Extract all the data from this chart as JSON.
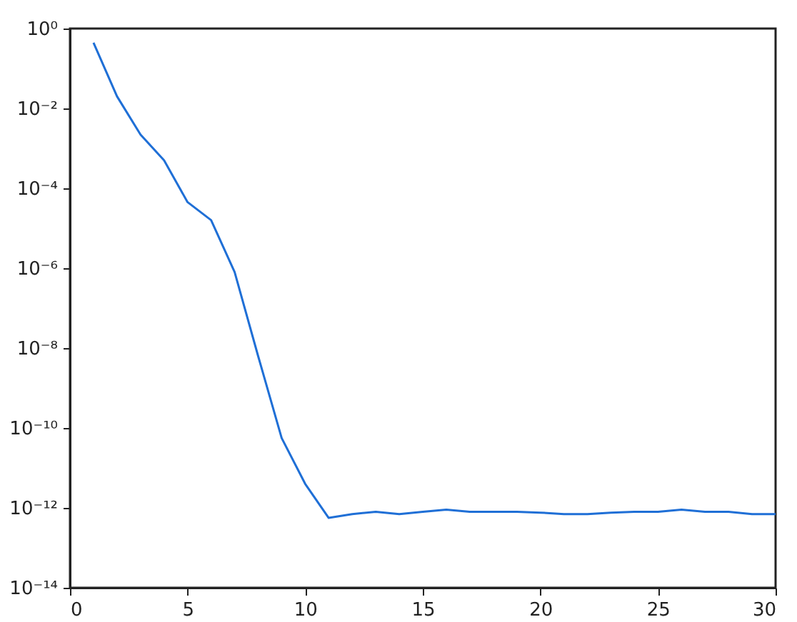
{
  "chart_data": {
    "type": "line",
    "log": "y",
    "grid": false,
    "marker": "none",
    "line_style": "solid",
    "x": [
      1,
      2,
      3,
      4,
      5,
      6,
      7,
      8,
      9,
      10,
      11,
      12,
      13,
      14,
      15,
      16,
      17,
      18,
      19,
      20,
      21,
      22,
      23,
      24,
      25,
      26,
      27,
      28,
      29,
      30
    ],
    "series": [
      {
        "color": "#1f6fd6",
        "values": [
          0.44,
          0.02,
          0.0022,
          0.0005,
          4.5e-05,
          1.6e-05,
          8e-07,
          6.3e-09,
          5.6e-11,
          4e-12,
          5.6e-13,
          7e-13,
          8e-13,
          7e-13,
          8e-13,
          9e-13,
          8e-13,
          8e-13,
          8e-13,
          7.6e-13,
          7e-13,
          7e-13,
          7.6e-13,
          8e-13,
          8e-13,
          9e-13,
          8e-13,
          8e-13,
          7e-13,
          7e-13
        ]
      }
    ],
    "xlim": [
      0,
      30
    ],
    "xticks": [
      0,
      5,
      10,
      15,
      20,
      25,
      30
    ],
    "ylim": [
      1e-14,
      1
    ],
    "yticks": [
      {
        "value": 1e-14,
        "label": "10⁻¹⁴"
      },
      {
        "value": 1e-12,
        "label": "10⁻¹²"
      },
      {
        "value": 1e-10,
        "label": "10⁻¹⁰"
      },
      {
        "value": 1e-08,
        "label": "10⁻⁸"
      },
      {
        "value": 1e-06,
        "label": "10⁻⁶"
      },
      {
        "value": 0.0001,
        "label": "10⁻⁴"
      },
      {
        "value": 0.01,
        "label": "10⁻²"
      },
      {
        "value": 1,
        "label": "10⁰"
      }
    ]
  }
}
